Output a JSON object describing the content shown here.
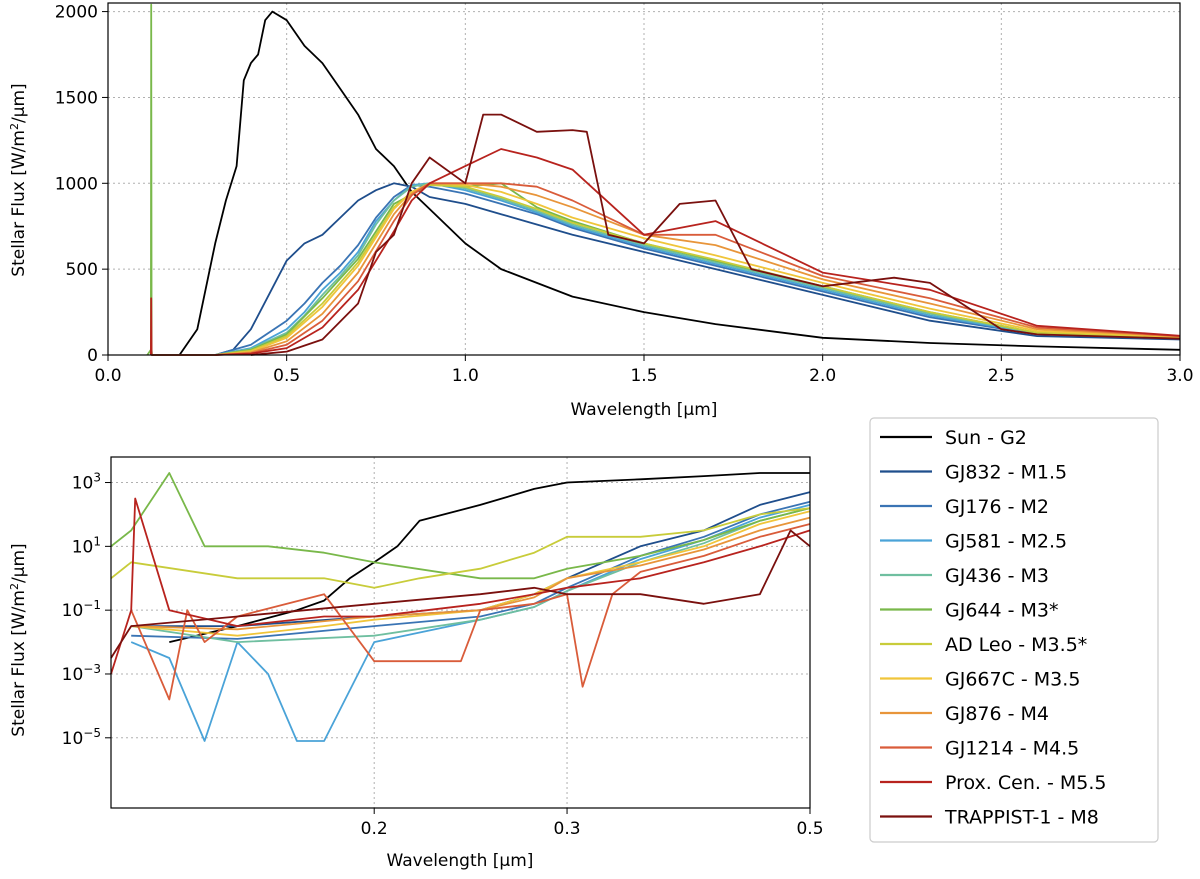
{
  "chart_data": [
    {
      "type": "line",
      "panel": "top",
      "xlabel": "Wavelength [μm]",
      "ylabel": "Stellar Flux [W/m²/μm]",
      "xlim": [
        0.0,
        3.0
      ],
      "ylim": [
        0,
        2050
      ],
      "xscale": "linear",
      "yscale": "linear",
      "xticks": [
        0.0,
        0.5,
        1.0,
        1.5,
        2.0,
        2.5,
        3.0
      ],
      "xtick_labels": [
        "0.0",
        "0.5",
        "1.0",
        "1.5",
        "2.0",
        "2.5",
        "3.0"
      ],
      "yticks": [
        0,
        500,
        1000,
        1500,
        2000
      ],
      "ytick_labels": [
        "0",
        "500",
        "1000",
        "1500",
        "2000"
      ],
      "grid": true,
      "series": [
        {
          "name": "Sun - G2",
          "color": "#000000",
          "x": [
            0.2,
            0.25,
            0.3,
            0.33,
            0.36,
            0.38,
            0.4,
            0.42,
            0.44,
            0.46,
            0.5,
            0.55,
            0.6,
            0.65,
            0.7,
            0.75,
            0.8,
            0.85,
            0.9,
            1.0,
            1.1,
            1.2,
            1.3,
            1.5,
            1.7,
            2.0,
            2.3,
            2.6,
            3.0
          ],
          "y": [
            0,
            150,
            650,
            900,
            1100,
            1600,
            1700,
            1750,
            1950,
            2000,
            1950,
            1800,
            1700,
            1550,
            1400,
            1200,
            1100,
            950,
            850,
            650,
            500,
            420,
            340,
            250,
            180,
            100,
            70,
            50,
            30
          ]
        },
        {
          "name": "GJ832 - M1.5",
          "color": "#1f4e8c",
          "x": [
            0.3,
            0.35,
            0.4,
            0.45,
            0.5,
            0.55,
            0.6,
            0.65,
            0.7,
            0.75,
            0.8,
            0.85,
            0.9,
            1.0,
            1.1,
            1.2,
            1.3,
            1.5,
            1.7,
            2.0,
            2.3,
            2.6,
            3.0
          ],
          "y": [
            0,
            30,
            150,
            350,
            550,
            650,
            700,
            800,
            900,
            960,
            1000,
            980,
            920,
            880,
            820,
            760,
            700,
            600,
            500,
            350,
            200,
            110,
            90
          ]
        },
        {
          "name": "GJ176 - M2",
          "color": "#3a74b4",
          "x": [
            0.3,
            0.4,
            0.5,
            0.55,
            0.6,
            0.65,
            0.7,
            0.75,
            0.8,
            0.85,
            0.9,
            1.0,
            1.1,
            1.2,
            1.3,
            1.5,
            1.7,
            2.0,
            2.3,
            2.6,
            3.0
          ],
          "y": [
            0,
            60,
            200,
            300,
            420,
            520,
            640,
            800,
            920,
            990,
            980,
            940,
            880,
            820,
            740,
            620,
            520,
            370,
            220,
            120,
            95
          ]
        },
        {
          "name": "GJ581 - M2.5",
          "color": "#4aa3d8",
          "x": [
            0.3,
            0.4,
            0.5,
            0.55,
            0.6,
            0.65,
            0.7,
            0.75,
            0.8,
            0.85,
            0.9,
            1.0,
            1.1,
            1.2,
            1.3,
            1.5,
            1.7,
            2.0,
            2.3,
            2.6,
            3.0
          ],
          "y": [
            0,
            40,
            150,
            250,
            380,
            480,
            600,
            780,
            900,
            990,
            1000,
            960,
            900,
            830,
            750,
            630,
            530,
            380,
            230,
            125,
            98
          ]
        },
        {
          "name": "GJ436 - M3",
          "color": "#6fbfa0",
          "x": [
            0.3,
            0.4,
            0.5,
            0.55,
            0.6,
            0.65,
            0.7,
            0.75,
            0.8,
            0.85,
            0.9,
            1.0,
            1.1,
            1.2,
            1.3,
            1.5,
            1.7,
            2.0,
            2.3,
            2.6,
            3.0
          ],
          "y": [
            0,
            35,
            130,
            230,
            350,
            460,
            580,
            760,
            900,
            980,
            1000,
            970,
            910,
            840,
            760,
            640,
            540,
            390,
            240,
            128,
            100
          ]
        },
        {
          "name": "GJ644 - M3*",
          "color": "#79b84a",
          "x": [
            0.11,
            0.12,
            0.121,
            0.122,
            0.123,
            0.13,
            0.3,
            0.4,
            0.5,
            0.6,
            0.7,
            0.8,
            0.9,
            1.0,
            1.1,
            1.2,
            1.3,
            1.5,
            1.7,
            2.0,
            2.3,
            2.6,
            3.0
          ],
          "y": [
            0,
            30,
            2040,
            30,
            0,
            0,
            0,
            30,
            120,
            330,
            560,
            880,
            990,
            980,
            1000,
            860,
            780,
            650,
            550,
            400,
            250,
            130,
            100
          ]
        },
        {
          "name": "AD Leo - M3.5*",
          "color": "#c8cc3a",
          "x": [
            0.3,
            0.4,
            0.5,
            0.6,
            0.7,
            0.8,
            0.85,
            0.9,
            1.0,
            1.1,
            1.2,
            1.3,
            1.5,
            1.7,
            2.0,
            2.3,
            2.6,
            3.0
          ],
          "y": [
            0,
            25,
            110,
            300,
            540,
            860,
            950,
            990,
            980,
            920,
            850,
            770,
            650,
            555,
            400,
            250,
            130,
            100
          ]
        },
        {
          "name": "GJ667C - M3.5",
          "color": "#f0c53a",
          "x": [
            0.3,
            0.4,
            0.5,
            0.6,
            0.7,
            0.8,
            0.85,
            0.9,
            1.0,
            1.1,
            1.2,
            1.3,
            1.5,
            1.7,
            2.0,
            2.3,
            2.6,
            3.0
          ],
          "y": [
            0,
            20,
            100,
            280,
            520,
            850,
            950,
            1000,
            990,
            950,
            880,
            800,
            680,
            580,
            420,
            270,
            140,
            105
          ]
        },
        {
          "name": "GJ876 - M4",
          "color": "#e8953a",
          "x": [
            0.3,
            0.4,
            0.5,
            0.6,
            0.7,
            0.8,
            0.85,
            0.9,
            1.0,
            1.1,
            1.2,
            1.3,
            1.5,
            1.7,
            2.0,
            2.3,
            2.6,
            3.0
          ],
          "y": [
            0,
            15,
            80,
            240,
            480,
            820,
            940,
            1000,
            1000,
            980,
            930,
            860,
            700,
            640,
            440,
            300,
            150,
            108
          ]
        },
        {
          "name": "GJ1214 - M4.5",
          "color": "#d95c3a",
          "x": [
            0.3,
            0.4,
            0.5,
            0.6,
            0.7,
            0.8,
            0.85,
            0.9,
            1.0,
            1.1,
            1.2,
            1.3,
            1.5,
            1.7,
            2.0,
            2.3,
            2.6,
            3.0
          ],
          "y": [
            0,
            10,
            60,
            200,
            430,
            780,
            930,
            1000,
            1000,
            1000,
            980,
            900,
            700,
            700,
            460,
            330,
            160,
            110
          ]
        },
        {
          "name": "Prox. Cen. - M5.5",
          "color": "#b8231e",
          "x": [
            0.12,
            0.121,
            0.122,
            0.3,
            0.4,
            0.5,
            0.6,
            0.7,
            0.8,
            0.85,
            0.9,
            1.0,
            1.1,
            1.2,
            1.3,
            1.5,
            1.7,
            2.0,
            2.3,
            2.6,
            3.0
          ],
          "y": [
            0,
            330,
            0,
            0,
            8,
            40,
            160,
            380,
            720,
            900,
            1000,
            1100,
            1200,
            1150,
            1080,
            700,
            780,
            480,
            380,
            170,
            112
          ]
        },
        {
          "name": "TRAPPIST-1 - M8",
          "color": "#7a100e",
          "x": [
            0.4,
            0.5,
            0.6,
            0.7,
            0.75,
            0.8,
            0.85,
            0.9,
            1.0,
            1.05,
            1.1,
            1.2,
            1.3,
            1.34,
            1.4,
            1.5,
            1.6,
            1.7,
            1.8,
            2.0,
            2.2,
            2.3,
            2.5,
            2.6,
            3.0
          ],
          "y": [
            0,
            20,
            90,
            300,
            600,
            700,
            1000,
            1150,
            1000,
            1400,
            1400,
            1300,
            1310,
            1300,
            700,
            650,
            880,
            900,
            500,
            400,
            450,
            420,
            150,
            120,
            95
          ]
        }
      ]
    },
    {
      "type": "line",
      "panel": "bottom",
      "xlabel": "Wavelength [μm]",
      "ylabel": "Stellar Flux [W/m²/μm]",
      "xlim": [
        0.115,
        0.5
      ],
      "ylim_exp": [
        -7.2,
        3.8
      ],
      "xscale": "log",
      "yscale": "log",
      "xticks": [
        0.2,
        0.3,
        0.5
      ],
      "xtick_labels": [
        "0.2",
        "0.3",
        "0.5"
      ],
      "yticks_exp": [
        -5,
        -3,
        -1,
        1,
        3
      ],
      "ytick_base": "10",
      "ytick_exponents": [
        "−5",
        "−3",
        "−1",
        "1",
        "3"
      ],
      "grid": true,
      "series": [
        {
          "name": "Sun - G2",
          "color": "#000000",
          "x": [
            0.13,
            0.15,
            0.17,
            0.18,
            0.19,
            0.2,
            0.21,
            0.22,
            0.25,
            0.28,
            0.3,
            0.35,
            0.4,
            0.45,
            0.5
          ],
          "y_log10": [
            -2,
            -1.5,
            -1,
            -0.7,
            0,
            0.5,
            1,
            1.8,
            2.3,
            2.8,
            3.0,
            3.1,
            3.2,
            3.3,
            3.3
          ]
        },
        {
          "name": "GJ832 - M1.5",
          "color": "#1f4e8c",
          "x": [
            0.12,
            0.15,
            0.2,
            0.25,
            0.28,
            0.3,
            0.35,
            0.4,
            0.45,
            0.5
          ],
          "y_log10": [
            -1.5,
            -1.5,
            -1.2,
            -1,
            -0.5,
            0,
            1,
            1.5,
            2.3,
            2.7
          ]
        },
        {
          "name": "GJ176 - M2",
          "color": "#3a74b4",
          "x": [
            0.12,
            0.15,
            0.2,
            0.25,
            0.28,
            0.3,
            0.35,
            0.4,
            0.45,
            0.5
          ],
          "y_log10": [
            -1.8,
            -1.9,
            -1.5,
            -1.2,
            -0.8,
            -0.3,
            0.7,
            1.3,
            2,
            2.4
          ]
        },
        {
          "name": "GJ581 - M2.5",
          "color": "#4aa3d8",
          "x": [
            0.12,
            0.13,
            0.14,
            0.15,
            0.16,
            0.17,
            0.18,
            0.2,
            0.25,
            0.28,
            0.3,
            0.35,
            0.4,
            0.45,
            0.5
          ],
          "y_log10": [
            -2,
            -2.5,
            -5.1,
            -2,
            -3,
            -5.1,
            -5.1,
            -2,
            -1.3,
            -0.9,
            -0.4,
            0.6,
            1.2,
            1.9,
            2.3
          ]
        },
        {
          "name": "GJ436 - M3",
          "color": "#6fbfa0",
          "x": [
            0.12,
            0.15,
            0.2,
            0.25,
            0.28,
            0.3,
            0.35,
            0.4,
            0.45,
            0.5
          ],
          "y_log10": [
            -1.5,
            -2,
            -1.8,
            -1.3,
            -0.9,
            -0.4,
            0.5,
            1.1,
            1.8,
            2.2
          ]
        },
        {
          "name": "GJ644 - M3*",
          "color": "#79b84a",
          "x": [
            0.115,
            0.12,
            0.13,
            0.14,
            0.15,
            0.16,
            0.18,
            0.2,
            0.25,
            0.28,
            0.3,
            0.35,
            0.4,
            0.45,
            0.5
          ],
          "y_log10": [
            1,
            1.5,
            3.3,
            1,
            1,
            1,
            0.8,
            0.5,
            0,
            0,
            0.3,
            0.7,
            1.2,
            1.8,
            2.2
          ]
        },
        {
          "name": "AD Leo - M3.5*",
          "color": "#c8cc3a",
          "x": [
            0.115,
            0.12,
            0.15,
            0.18,
            0.2,
            0.22,
            0.25,
            0.28,
            0.3,
            0.35,
            0.4,
            0.45,
            0.5
          ],
          "y_log10": [
            0,
            0.5,
            0,
            0,
            -0.3,
            0,
            0.3,
            0.8,
            1.3,
            1.3,
            1.5,
            2,
            2.2
          ]
        },
        {
          "name": "GJ667C - M3.5",
          "color": "#f0c53a",
          "x": [
            0.12,
            0.15,
            0.18,
            0.2,
            0.25,
            0.28,
            0.3,
            0.35,
            0.4,
            0.45,
            0.5
          ],
          "y_log10": [
            -1.5,
            -1.8,
            -1.5,
            -1.3,
            -1,
            -0.5,
            0,
            0.5,
            1,
            1.7,
            2.1
          ]
        },
        {
          "name": "GJ876 - M4",
          "color": "#e8953a",
          "x": [
            0.12,
            0.15,
            0.2,
            0.25,
            0.28,
            0.3,
            0.35,
            0.4,
            0.45,
            0.5
          ],
          "y_log10": [
            -1.5,
            -1.6,
            -1.2,
            -1,
            -0.6,
            0,
            0.4,
            0.9,
            1.5,
            1.9
          ]
        },
        {
          "name": "GJ1214 - M4.5",
          "color": "#d95c3a",
          "x": [
            0.12,
            0.13,
            0.135,
            0.14,
            0.15,
            0.18,
            0.2,
            0.24,
            0.25,
            0.28,
            0.3,
            0.31,
            0.33,
            0.35,
            0.4,
            0.45,
            0.5
          ],
          "y_log10": [
            -1,
            -3.8,
            -1,
            -2,
            -1.2,
            -0.5,
            -2.6,
            -2.6,
            -1,
            -0.8,
            -0.5,
            -3.4,
            -0.5,
            0.2,
            0.7,
            1.3,
            1.7
          ]
        },
        {
          "name": "Prox. Cen. - M5.5",
          "color": "#b8231e",
          "x": [
            0.115,
            0.12,
            0.121,
            0.13,
            0.15,
            0.18,
            0.2,
            0.25,
            0.28,
            0.3,
            0.35,
            0.4,
            0.45,
            0.5
          ],
          "y_log10": [
            -3,
            -1,
            2.5,
            -1,
            -1.5,
            -1.2,
            -1.2,
            -0.8,
            -0.5,
            -0.3,
            0,
            0.5,
            1,
            1.5
          ]
        },
        {
          "name": "TRAPPIST-1 - M8",
          "color": "#7a100e",
          "x": [
            0.115,
            0.12,
            0.15,
            0.2,
            0.25,
            0.28,
            0.3,
            0.35,
            0.4,
            0.45,
            0.48,
            0.5
          ],
          "y_log10": [
            -2.5,
            -1.5,
            -1.2,
            -0.8,
            -0.5,
            -0.3,
            -0.5,
            -0.5,
            -0.8,
            -0.5,
            1.5,
            1
          ]
        }
      ]
    }
  ]
}
